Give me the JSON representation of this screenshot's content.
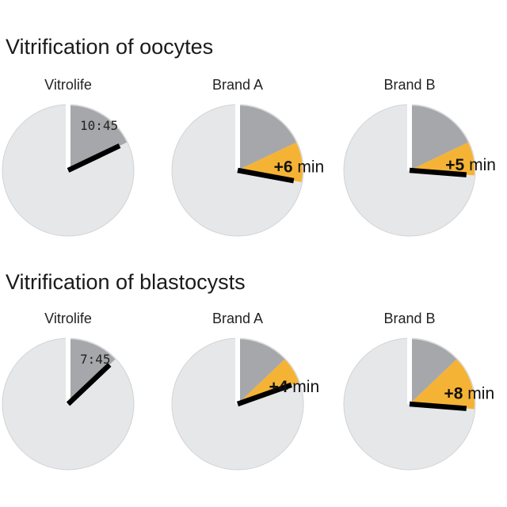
{
  "chart_data": {
    "type": "pie",
    "unit": "min",
    "sections": [
      {
        "title": "Vitrification of oocytes",
        "clocks": [
          {
            "label": "Vitrolife",
            "time_label": "10:45",
            "base_minutes": 10.75,
            "extra_minutes": 0,
            "extra_label": ""
          },
          {
            "label": "Brand A",
            "time_label": "",
            "base_minutes": 10.75,
            "extra_minutes": 6,
            "extra_label": "+6 min"
          },
          {
            "label": "Brand B",
            "time_label": "",
            "base_minutes": 10.75,
            "extra_minutes": 5,
            "extra_label": "+5 min"
          }
        ]
      },
      {
        "title": "Vitrification of blastocysts",
        "clocks": [
          {
            "label": "Vitrolife",
            "time_label": "7:45",
            "base_minutes": 7.75,
            "extra_minutes": 0,
            "extra_label": ""
          },
          {
            "label": "Brand A",
            "time_label": "",
            "base_minutes": 7.75,
            "extra_minutes": 4,
            "extra_label": "+4 min"
          },
          {
            "label": "Brand B",
            "time_label": "",
            "base_minutes": 7.75,
            "extra_minutes": 8,
            "extra_label": "+8 min"
          }
        ]
      }
    ],
    "colors": {
      "face": "#e6e7e8",
      "face_stroke": "#d2d3d5",
      "base": "#a6a7aa",
      "extra": "#f5b335",
      "hand": "#000000",
      "marker": "#ffffff"
    }
  }
}
